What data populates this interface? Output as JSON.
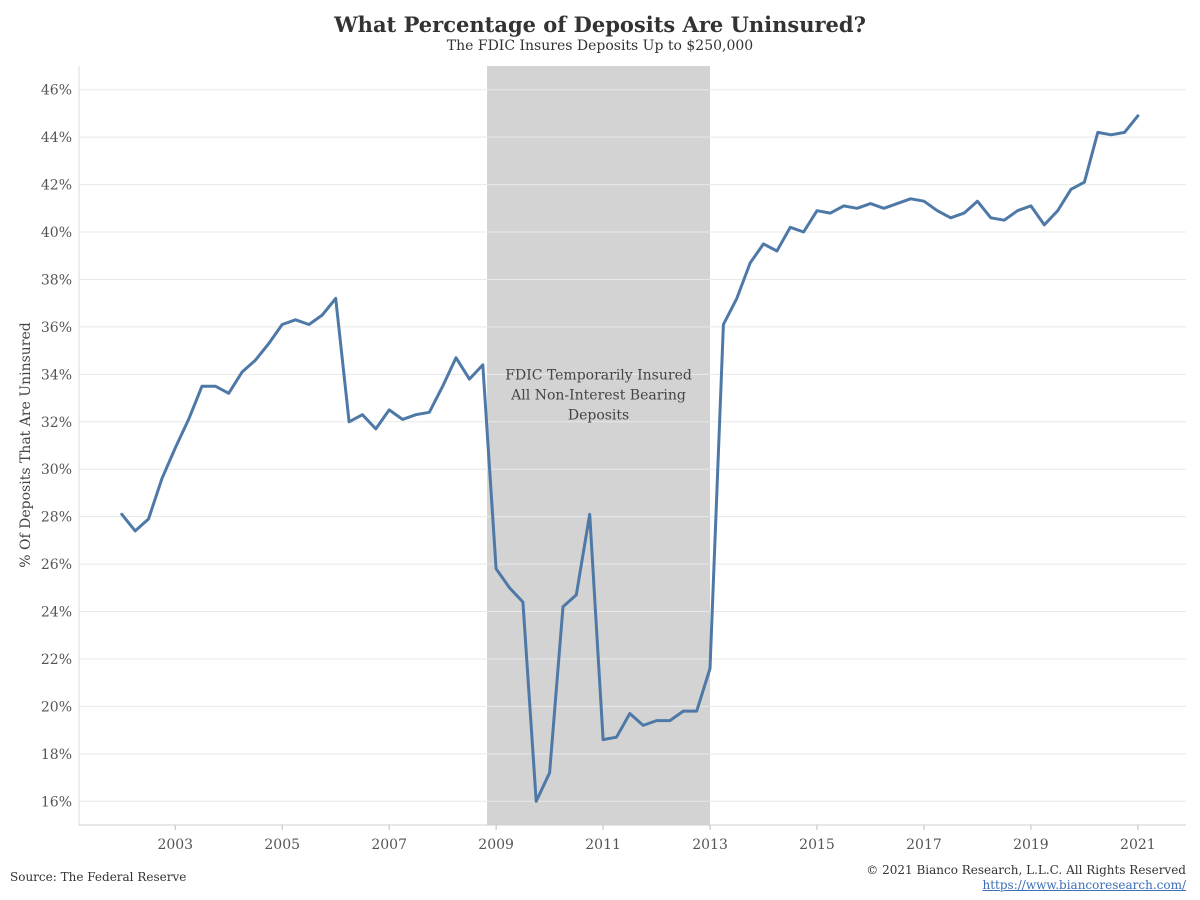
{
  "chart_data": {
    "type": "line",
    "title": "What Percentage of Deposits Are Uninsured?",
    "subtitle": "The FDIC Insures Deposits Up to $250,000",
    "ylabel": "% Of Deposits That Are Uninsured",
    "xlabel": "",
    "ylim": [
      15,
      47
    ],
    "xlim": [
      2001.2,
      2021.9
    ],
    "y_ticks": [
      16,
      18,
      20,
      22,
      24,
      26,
      28,
      30,
      32,
      34,
      36,
      38,
      40,
      42,
      44,
      46
    ],
    "y_tick_labels": [
      "16%",
      "18%",
      "20%",
      "22%",
      "24%",
      "26%",
      "28%",
      "30%",
      "32%",
      "34%",
      "36%",
      "38%",
      "40%",
      "42%",
      "44%",
      "46%"
    ],
    "x_ticks": [
      2003,
      2005,
      2007,
      2009,
      2011,
      2013,
      2015,
      2017,
      2019,
      2021
    ],
    "x_tick_labels": [
      "2003",
      "2005",
      "2007",
      "2009",
      "2011",
      "2013",
      "2015",
      "2017",
      "2019",
      "2021"
    ],
    "grid": "horizontal",
    "line_color": "#4e79a7",
    "shade_color": "#d3d3d3",
    "shaded_region": {
      "x_start": 2008.83,
      "x_end": 2013.0
    },
    "annotation": [
      "FDIC Temporarily Insured",
      "All Non-Interest Bearing",
      "Deposits"
    ],
    "series": [
      {
        "x": [
          2002.0,
          2002.25,
          2002.5,
          2002.75,
          2003.0,
          2003.25,
          2003.5,
          2003.75,
          2004.0,
          2004.25,
          2004.5,
          2004.75,
          2005.0,
          2005.25,
          2005.5,
          2005.75,
          2006.0,
          2006.25,
          2006.5,
          2006.75,
          2007.0,
          2007.25,
          2007.5,
          2007.75,
          2008.0,
          2008.25,
          2008.5,
          2008.75,
          2009.0,
          2009.25,
          2009.5,
          2009.75,
          2010.0,
          2010.25,
          2010.5,
          2010.75,
          2011.0,
          2011.25,
          2011.5,
          2011.75,
          2012.0,
          2012.25,
          2012.5,
          2012.75,
          2013.0,
          2013.25,
          2013.5,
          2013.75,
          2014.0,
          2014.25,
          2014.5,
          2014.75,
          2015.0,
          2015.25,
          2015.5,
          2015.75,
          2016.0,
          2016.25,
          2016.5,
          2016.75,
          2017.0,
          2017.25,
          2017.5,
          2017.75,
          2018.0,
          2018.25,
          2018.5,
          2018.75,
          2019.0,
          2019.25,
          2019.5,
          2019.75,
          2020.0,
          2020.25,
          2020.5,
          2020.75,
          2021.0
        ],
        "values": [
          28.1,
          27.4,
          27.9,
          29.6,
          30.9,
          32.1,
          33.5,
          33.5,
          33.2,
          34.1,
          34.6,
          35.3,
          36.1,
          36.3,
          36.1,
          36.5,
          37.2,
          32.0,
          32.3,
          31.7,
          32.5,
          32.1,
          32.3,
          32.4,
          33.5,
          34.7,
          33.8,
          34.4,
          25.8,
          25.0,
          24.4,
          16.0,
          17.2,
          24.2,
          24.7,
          28.1,
          18.6,
          18.7,
          19.7,
          19.2,
          19.4,
          19.4,
          19.8,
          19.8,
          21.6,
          36.1,
          37.2,
          38.7,
          39.5,
          39.2,
          40.2,
          40.0,
          40.9,
          40.8,
          41.1,
          41.0,
          41.2,
          41.0,
          41.2,
          41.4,
          41.3,
          40.9,
          40.6,
          40.8,
          41.3,
          40.6,
          40.5,
          40.9,
          41.1,
          40.3,
          40.9,
          41.8,
          42.1,
          44.2,
          44.1,
          44.2,
          44.9
        ]
      }
    ]
  },
  "footer": {
    "source": "Source: The Federal Reserve",
    "copyright": "© 2021 Bianco Research, L.L.C. All Rights Reserved",
    "website": "https://www.biancoresearch.com/"
  }
}
